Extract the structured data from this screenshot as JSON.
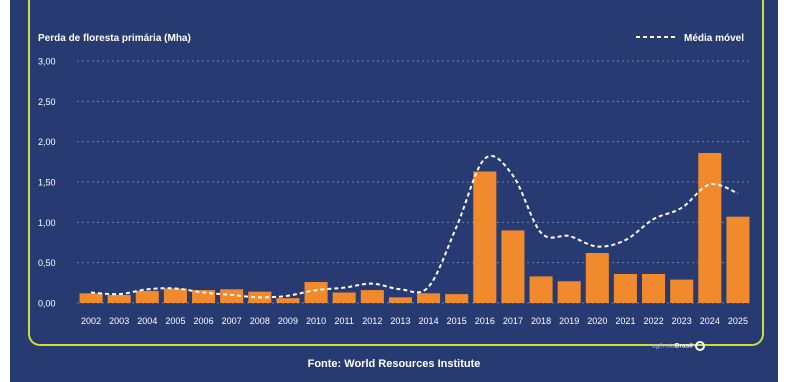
{
  "chart_data": {
    "type": "bar",
    "ylabel": "Perda de floresta primária (Mha)",
    "ylim": [
      0,
      3
    ],
    "yticks": [
      "3,00",
      "2,50",
      "2,00",
      "1,50",
      "1,00",
      "0,50",
      "0,00"
    ],
    "ytick_values": [
      3,
      2.5,
      2,
      1.5,
      1,
      0.5,
      0
    ],
    "grid": true,
    "legend_position": "top-right",
    "categories": [
      "2002",
      "2003",
      "2004",
      "2005",
      "2006",
      "2007",
      "2008",
      "2009",
      "2010",
      "2011",
      "2012",
      "2013",
      "2014",
      "2015",
      "2016",
      "2017",
      "2018",
      "2019",
      "2020",
      "2021",
      "2022",
      "2023",
      "2024",
      "2025"
    ],
    "series": [
      {
        "kind": "bar",
        "values": [
          0.12,
          0.1,
          0.15,
          0.18,
          0.16,
          0.17,
          0.14,
          0.06,
          0.26,
          0.13,
          0.16,
          0.07,
          0.12,
          0.11,
          1.63,
          0.9,
          0.33,
          0.27,
          0.62,
          0.36,
          0.36,
          0.29,
          1.86,
          1.07
        ]
      },
      {
        "kind": "line",
        "name": "Média móvel",
        "style": "dashed",
        "values": [
          0.13,
          0.11,
          0.17,
          0.18,
          0.13,
          0.1,
          0.07,
          0.09,
          0.16,
          0.19,
          0.24,
          0.17,
          0.2,
          0.95,
          1.79,
          1.58,
          0.87,
          0.83,
          0.7,
          0.78,
          1.04,
          1.18,
          1.47,
          1.36
        ]
      }
    ],
    "colors": {
      "bar": "#f08a2c",
      "line": "#ffffff",
      "background": "#273a72",
      "grid": "#6d7fae",
      "border": "#cddc39"
    }
  },
  "legend": {
    "line_label": "Média móvel"
  },
  "footer": {
    "source": "Fonte: World Resources Institute",
    "logo_prefix": "agência",
    "logo_name": "Brasil"
  }
}
